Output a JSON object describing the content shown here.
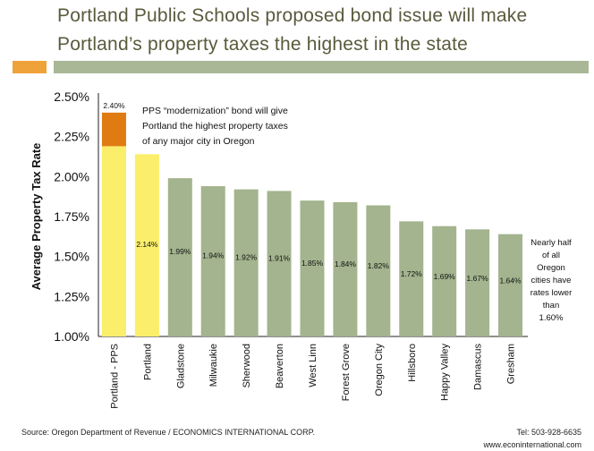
{
  "title_line1": "Portland Public Schools proposed bond issue will make",
  "title_line2": "Portland’s property taxes the highest in the state",
  "colors": {
    "accent_orange": "#f0a23a",
    "accent_green": "#a9b796",
    "pps_base": "#fbee6b",
    "pps_top": "#e07b12",
    "portland": "#fbee6b",
    "other": "#a3b48e"
  },
  "chart_data": {
    "type": "bar",
    "ylabel": "Average Property Tax Rate",
    "xlabel": "",
    "ylim": [
      1.0,
      2.5
    ],
    "yticks": [
      "1.00%",
      "1.25%",
      "1.50%",
      "1.75%",
      "2.00%",
      "2.25%",
      "2.50%"
    ],
    "categories": [
      "Portland - PPS",
      "Portland",
      "Gladstone",
      "Milwaukie",
      "Sherwood",
      "Beaverton",
      "West Linn",
      "Forest Grove",
      "Oregon City",
      "Hillsboro",
      "Happy Valley",
      "Damascus",
      "Gresham"
    ],
    "values": [
      2.4,
      2.14,
      1.99,
      1.94,
      1.92,
      1.91,
      1.85,
      1.84,
      1.82,
      1.72,
      1.69,
      1.67,
      1.64
    ],
    "labels": [
      "2.40%",
      "2.14%",
      "1.99%",
      "1.94%",
      "1.92%",
      "1.91%",
      "1.85%",
      "1.84%",
      "1.82%",
      "1.72%",
      "1.69%",
      "1.67%",
      "1.64%"
    ],
    "stacked_first_bar_base": 2.19,
    "grid": false,
    "annotations": [
      [
        "PPS “modernization” bond will give",
        "Portland the highest property taxes",
        "of any major city in Oregon"
      ],
      [
        "Nearly half",
        "of all",
        "Oregon",
        "cities have",
        "rates lower",
        "than",
        "1.60%"
      ]
    ]
  },
  "footer": {
    "source": "Source: Oregon Department of Revenue / ECONOMICS INTERNATIONAL CORP.",
    "tel": "Tel: 503-928-6635",
    "web": "www.econinternational.com"
  }
}
